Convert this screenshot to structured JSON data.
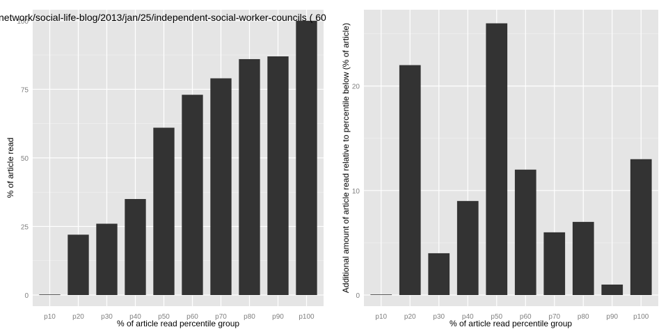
{
  "chart_data": [
    {
      "type": "bar",
      "title": "network/social-life-blog/2013/jan/25/independent-social-worker-councils ( 60",
      "xlabel": "% of article read percentile group",
      "ylabel": "% of article read",
      "categories": [
        "p10",
        "p20",
        "p30",
        "p40",
        "p50",
        "p60",
        "p70",
        "p80",
        "p90",
        "p100"
      ],
      "values": [
        0,
        22,
        26,
        35,
        61,
        73,
        79,
        86,
        87,
        100
      ],
      "ylim": [
        0,
        104
      ],
      "yticks": [
        0,
        25,
        50,
        75,
        100
      ],
      "grid": true,
      "bar_color": "#333333",
      "panel_color": "#e5e5e5"
    },
    {
      "type": "bar",
      "title": "",
      "xlabel": "% of article read percentile group",
      "ylabel": "Additional amount of article read relative to percentile below (% of article)",
      "categories": [
        "p10",
        "p20",
        "p30",
        "p40",
        "p50",
        "p60",
        "p70",
        "p80",
        "p90",
        "p100"
      ],
      "values": [
        0,
        22,
        4,
        9,
        26,
        12,
        6,
        7,
        1,
        13
      ],
      "ylim": [
        0,
        27.3
      ],
      "yticks": [
        0,
        10,
        20
      ],
      "grid": true,
      "bar_color": "#333333",
      "panel_color": "#e5e5e5"
    }
  ]
}
